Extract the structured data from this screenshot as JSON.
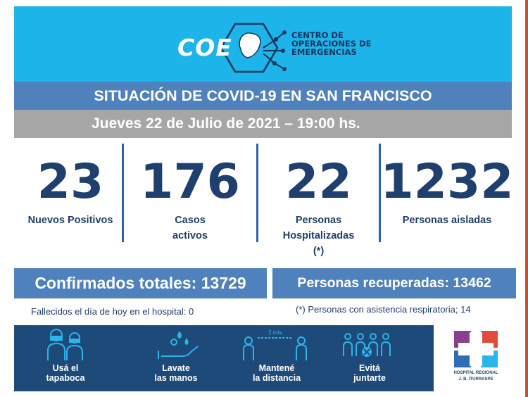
{
  "header": {
    "logo_word": "COE",
    "org_lines": [
      "CENTRO DE",
      "OPERACIONES DE",
      "EMERGENCIAS"
    ]
  },
  "title": "SITUACIÓN DE COVID-19 EN SAN FRANCISCO",
  "date_line": "Jueves 22 de Julio de 2021 – 19:00 hs.",
  "stats": [
    {
      "value": "23",
      "label": "Nuevos Positivos"
    },
    {
      "value": "176",
      "label": "Casos\nactivos"
    },
    {
      "value": "22",
      "label": "Personas\nHospitalizadas\n(*)"
    },
    {
      "value": "1232",
      "label": "Personas aisladas"
    }
  ],
  "totals": {
    "confirmed": "Confirmados totales: 13729",
    "recovered": "Personas recuperadas: 13462"
  },
  "notes": {
    "deaths": "Fallecidos el día de hoy en el hospital: 0",
    "respiratory": "(*) Personas con asistencia respiratoria; 14"
  },
  "prevention": [
    {
      "icon": "mask-people-icon",
      "label": "Usá el\ntapaboca"
    },
    {
      "icon": "wash-hands-icon",
      "label": "Lavate\nlas manos"
    },
    {
      "icon": "distance-icon",
      "label": "Mantené\nla distancia",
      "distance_text": "2 mts."
    },
    {
      "icon": "no-gathering-icon",
      "label": "Evitá\njuntarte"
    }
  ],
  "hospital": {
    "name": "HOSPITAL REGIONAL\nJ. B. ITURRASPE"
  },
  "colors": {
    "header_bg": "#1db4ea",
    "title_bg": "#4f81bd",
    "date_bg": "#a6a6a6",
    "stat_text": "#1f3f6e",
    "banner_bg": "#1e4a7a",
    "accent_red": "#c9502c"
  }
}
